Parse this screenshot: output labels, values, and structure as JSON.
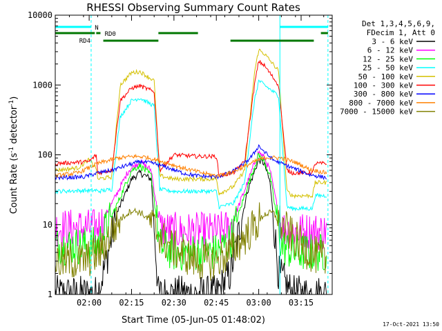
{
  "chart_data": {
    "type": "line",
    "title": "RHESSI Observing Summary Count Rates",
    "xlabel": "Start Time (05-Jun-05 01:48:02)",
    "ylabel": "Count Rate (s⁻¹ detector⁻¹)",
    "ylabel_main": "Count Rate (s",
    "ylabel_sup1": "-1",
    "ylabel_mid": " detector",
    "ylabel_sup2": "-1",
    "ylabel_end": ")",
    "yscale": "log",
    "ylim": [
      1,
      10000
    ],
    "xlim_minutes": [
      0,
      98
    ],
    "x_ticks": [
      {
        "minute": 12,
        "label": "02:00"
      },
      {
        "minute": 27,
        "label": "02:15"
      },
      {
        "minute": 42,
        "label": "02:30"
      },
      {
        "minute": 57,
        "label": "02:45"
      },
      {
        "minute": 72,
        "label": "03:00"
      },
      {
        "minute": 87,
        "label": "03:15"
      }
    ],
    "y_ticks": [
      {
        "value": 1,
        "label": "1"
      },
      {
        "value": 10,
        "label": "10"
      },
      {
        "value": 100,
        "label": "100"
      },
      {
        "value": 1000,
        "label": "1000"
      },
      {
        "value": 10000,
        "label": "10000"
      }
    ],
    "legend_header_1": "Det 1,3,4,5,6,9,",
    "legend_header_2": "FDecim 1, Att 0",
    "legend_placement": "right",
    "footer_stamp": "17-Oct-2021 13:50",
    "series": [
      {
        "name": "3 - 6 keV",
        "color": "#000000",
        "x": [
          0,
          12,
          15,
          18,
          22,
          27,
          30,
          34,
          36.5,
          42,
          50,
          57,
          62,
          68,
          72,
          74,
          76,
          79,
          84,
          91,
          96
        ],
        "y": [
          1,
          1,
          1,
          3,
          15,
          45,
          55,
          45,
          1,
          1,
          1,
          1,
          2,
          30,
          85,
          75,
          40,
          2,
          1,
          1,
          1
        ]
      },
      {
        "name": "6 - 12 keV",
        "color": "#ff00ff",
        "x": [
          0,
          14,
          16,
          20,
          26,
          30,
          34,
          37,
          42,
          50,
          57,
          62,
          68,
          72,
          74,
          76,
          80,
          84,
          91,
          96
        ],
        "y": [
          9,
          9,
          10,
          20,
          60,
          80,
          60,
          9,
          8,
          8,
          8,
          9,
          40,
          110,
          90,
          60,
          9,
          8,
          8,
          8
        ]
      },
      {
        "name": "12 - 25 keV",
        "color": "#00ff00",
        "x": [
          0,
          14,
          16,
          22,
          27,
          30,
          34,
          37,
          42,
          50,
          57,
          62,
          68,
          72,
          74,
          76,
          80,
          84,
          91,
          96
        ],
        "y": [
          5,
          5,
          6,
          20,
          60,
          70,
          50,
          5,
          4,
          4,
          4,
          6,
          35,
          100,
          80,
          50,
          5,
          4,
          4,
          4
        ]
      },
      {
        "name": "25 - 50 keV",
        "color": "#00ffff",
        "x": [
          0,
          14.5,
          15,
          20,
          23,
          27,
          30,
          35,
          37,
          42,
          50,
          57,
          58,
          63,
          67,
          70.5,
          72,
          74,
          79,
          82,
          84,
          91,
          92,
          96
        ],
        "y": [
          30,
          31,
          30,
          32,
          350,
          600,
          650,
          500,
          32,
          30,
          30,
          30,
          18,
          20,
          40,
          600,
          1150,
          1000,
          700,
          18,
          17,
          17,
          26,
          26
        ]
      },
      {
        "name": "50 - 100 keV",
        "color": "#d4c000",
        "x": [
          0,
          8,
          12,
          14.5,
          15,
          20,
          23,
          27,
          30,
          35,
          37,
          42,
          50,
          57,
          58,
          63,
          67,
          70.5,
          72,
          74,
          79,
          82,
          84,
          91,
          92,
          96
        ],
        "y": [
          60,
          65,
          85,
          65,
          45,
          48,
          1000,
          1500,
          1550,
          1150,
          50,
          45,
          45,
          45,
          28,
          35,
          60,
          1500,
          3200,
          2800,
          1600,
          30,
          26,
          26,
          40,
          40
        ]
      },
      {
        "name": "100 - 300 keV",
        "color": "#ff0000",
        "x": [
          0,
          12,
          14.5,
          15,
          20,
          23,
          27,
          30,
          35,
          37,
          42,
          50,
          57,
          58,
          63,
          67,
          70.5,
          72,
          74,
          79,
          82,
          84,
          91,
          92,
          96
        ],
        "y": [
          75,
          80,
          100,
          55,
          60,
          600,
          900,
          970,
          800,
          60,
          100,
          95,
          95,
          50,
          55,
          80,
          1000,
          2200,
          1900,
          1000,
          60,
          55,
          55,
          75,
          75
        ]
      },
      {
        "name": "300 - 800 keV",
        "color": "#0000ff",
        "x": [
          0,
          10,
          15,
          20,
          25,
          30,
          35,
          40,
          45,
          50,
          57,
          62,
          67,
          70,
          72,
          74,
          77,
          80,
          84,
          90,
          96
        ],
        "y": [
          47,
          48,
          55,
          60,
          70,
          80,
          75,
          65,
          55,
          50,
          48,
          55,
          75,
          100,
          135,
          110,
          85,
          75,
          65,
          52,
          47
        ]
      },
      {
        "name": "800 - 7000 keV",
        "color": "#ff8000",
        "x": [
          0,
          8,
          15,
          22,
          28,
          32,
          38,
          45,
          52,
          57,
          62,
          66,
          72,
          75,
          80,
          85,
          90,
          96
        ],
        "y": [
          50,
          55,
          75,
          90,
          95,
          93,
          80,
          65,
          55,
          50,
          55,
          65,
          85,
          92,
          90,
          78,
          62,
          55
        ]
      },
      {
        "name": "7000 - 15000 keV",
        "color": "#808000",
        "x": [
          0,
          10,
          16,
          20,
          23,
          27,
          30,
          33,
          36,
          40,
          44,
          50,
          57,
          62,
          66,
          70,
          74,
          77,
          80,
          85,
          90,
          96
        ],
        "y": [
          3,
          3,
          4,
          8,
          12,
          16,
          15,
          12,
          8,
          5,
          4,
          3,
          3,
          4,
          6,
          9,
          14,
          15,
          10,
          6,
          4,
          3
        ]
      }
    ],
    "vertical_markers_minutes": [
      {
        "minute": 0,
        "style": "solid"
      },
      {
        "minute": 12.7,
        "style": "dashed"
      },
      {
        "minute": 79.5,
        "style": "solid"
      },
      {
        "minute": 96.5,
        "style": "dashed"
      }
    ],
    "state_bars": {
      "night_label": "N",
      "rd0_label": "RD0",
      "rd4_label": "RD4"
    }
  }
}
